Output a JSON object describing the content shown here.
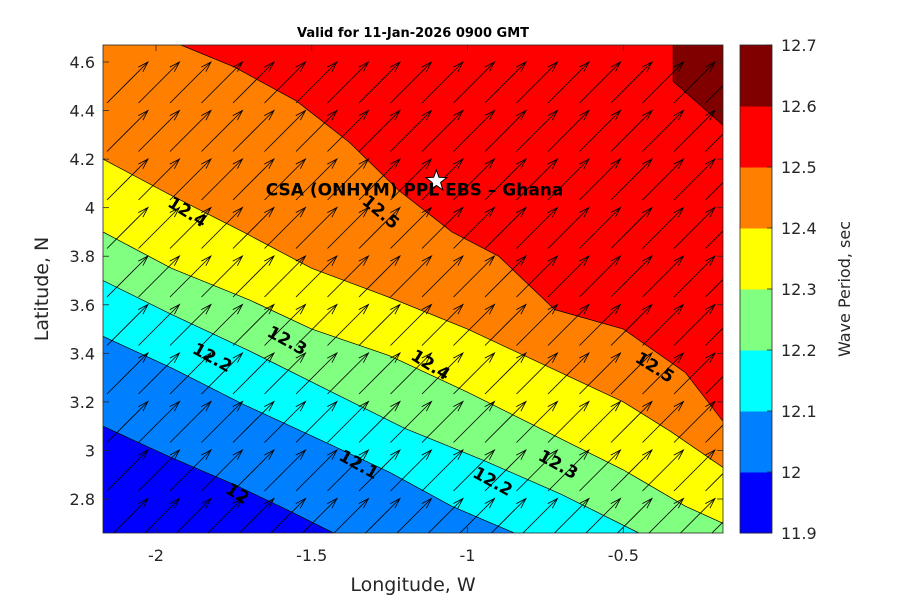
{
  "chart_data": {
    "type": "filled-contour",
    "title": "Valid for 11-Jan-2026 0900 GMT",
    "xlabel": "Longitude, W",
    "ylabel": "Latitude, N",
    "xlim": [
      -2.17,
      -0.18
    ],
    "ylim": [
      2.66,
      4.67
    ],
    "xticks": [
      {
        "value": -2,
        "label": "-2"
      },
      {
        "value": -1.5,
        "label": "-1.5"
      },
      {
        "value": -1,
        "label": "-1"
      },
      {
        "value": -0.5,
        "label": "-0.5"
      }
    ],
    "yticks": [
      {
        "value": 2.8,
        "label": "2.8"
      },
      {
        "value": 3,
        "label": "3"
      },
      {
        "value": 3.2,
        "label": "3.2"
      },
      {
        "value": 3.4,
        "label": "3.4"
      },
      {
        "value": 3.6,
        "label": "3.6"
      },
      {
        "value": 3.8,
        "label": "3.8"
      },
      {
        "value": 4,
        "label": "4"
      },
      {
        "value": 4.2,
        "label": "4.2"
      },
      {
        "value": 4.4,
        "label": "4.4"
      },
      {
        "value": 4.6,
        "label": "4.6"
      }
    ],
    "colorbar": {
      "label": "Wave Period, sec",
      "ticks": [
        "11.9",
        "12",
        "12.1",
        "12.2",
        "12.3",
        "12.4",
        "12.5",
        "12.6",
        "12.7"
      ],
      "levels": [
        11.9,
        12.0,
        12.1,
        12.2,
        12.3,
        12.4,
        12.5,
        12.6,
        12.7
      ],
      "colors": [
        "#0000ff",
        "#0080ff",
        "#00ffff",
        "#80ff80",
        "#ffff00",
        "#ff8000",
        "#ff0000",
        "#800000"
      ]
    },
    "contours": [
      {
        "level": 12.0,
        "points": [
          [
            -2.17,
            3.1
          ],
          [
            -1.95,
            2.97
          ],
          [
            -1.75,
            2.86
          ],
          [
            -1.57,
            2.75
          ],
          [
            -1.43,
            2.66
          ]
        ]
      },
      {
        "level": 12.1,
        "points": [
          [
            -2.17,
            3.47
          ],
          [
            -1.95,
            3.34
          ],
          [
            -1.72,
            3.19
          ],
          [
            -1.5,
            3.06
          ],
          [
            -1.25,
            2.91
          ],
          [
            -1.05,
            2.77
          ],
          [
            -0.85,
            2.66
          ]
        ]
      },
      {
        "level": 12.2,
        "points": [
          [
            -2.17,
            3.7
          ],
          [
            -1.95,
            3.56
          ],
          [
            -1.7,
            3.41
          ],
          [
            -1.45,
            3.25
          ],
          [
            -1.2,
            3.09
          ],
          [
            -0.95,
            2.96
          ],
          [
            -0.7,
            2.82
          ],
          [
            -0.45,
            2.66
          ]
        ]
      },
      {
        "level": 12.3,
        "points": [
          [
            -2.17,
            3.9
          ],
          [
            -1.95,
            3.75
          ],
          [
            -1.7,
            3.62
          ],
          [
            -1.5,
            3.5
          ],
          [
            -1.25,
            3.39
          ],
          [
            -1.0,
            3.24
          ],
          [
            -0.75,
            3.08
          ],
          [
            -0.5,
            2.92
          ],
          [
            -0.3,
            2.77
          ],
          [
            -0.18,
            2.7
          ]
        ]
      },
      {
        "level": 12.4,
        "points": [
          [
            -2.17,
            4.2
          ],
          [
            -1.95,
            4.05
          ],
          [
            -1.72,
            3.9
          ],
          [
            -1.5,
            3.75
          ],
          [
            -1.25,
            3.63
          ],
          [
            -1.0,
            3.5
          ],
          [
            -0.75,
            3.35
          ],
          [
            -0.5,
            3.2
          ],
          [
            -0.35,
            3.08
          ],
          [
            -0.18,
            2.93
          ]
        ]
      },
      {
        "level": 12.5,
        "points": [
          [
            -1.92,
            4.67
          ],
          [
            -1.75,
            4.58
          ],
          [
            -1.55,
            4.44
          ],
          [
            -1.38,
            4.27
          ],
          [
            -1.22,
            4.07
          ],
          [
            -1.05,
            3.9
          ],
          [
            -0.9,
            3.8
          ],
          [
            -0.72,
            3.58
          ],
          [
            -0.5,
            3.5
          ],
          [
            -0.3,
            3.32
          ],
          [
            -0.18,
            3.12
          ]
        ]
      },
      {
        "level": 12.6,
        "points": [
          [
            -0.34,
            4.67
          ],
          [
            -0.34,
            4.52
          ],
          [
            -0.18,
            4.34
          ]
        ]
      }
    ],
    "contour_labels": [
      {
        "text": "12",
        "lon": -1.74,
        "lat": 2.82,
        "angle": 32
      },
      {
        "text": "12.1",
        "lon": -1.35,
        "lat": 2.94,
        "angle": 29
      },
      {
        "text": "12.2",
        "lon": -1.82,
        "lat": 3.38,
        "angle": 29
      },
      {
        "text": "12.2",
        "lon": -0.92,
        "lat": 2.87,
        "angle": 29
      },
      {
        "text": "12.3",
        "lon": -1.58,
        "lat": 3.45,
        "angle": 29
      },
      {
        "text": "12.3",
        "lon": -0.71,
        "lat": 2.94,
        "angle": 29
      },
      {
        "text": "12.4",
        "lon": -1.9,
        "lat": 3.98,
        "angle": 32
      },
      {
        "text": "12.4",
        "lon": -1.12,
        "lat": 3.35,
        "angle": 32
      },
      {
        "text": "12.5",
        "lon": -1.28,
        "lat": 3.98,
        "angle": 40
      },
      {
        "text": "12.5",
        "lon": -0.4,
        "lat": 3.34,
        "angle": 32
      }
    ],
    "vectors": {
      "direction_deg_from_north": 45,
      "description": "uniform wave direction arrows toward NE"
    },
    "site_marker": {
      "lon": -1.1,
      "lat": 4.11,
      "symbol": "star"
    },
    "annotation": {
      "text": "CSA (ONHYM) PPL EBS  – Ghana",
      "lon": -1.17,
      "lat": 4.05
    }
  }
}
